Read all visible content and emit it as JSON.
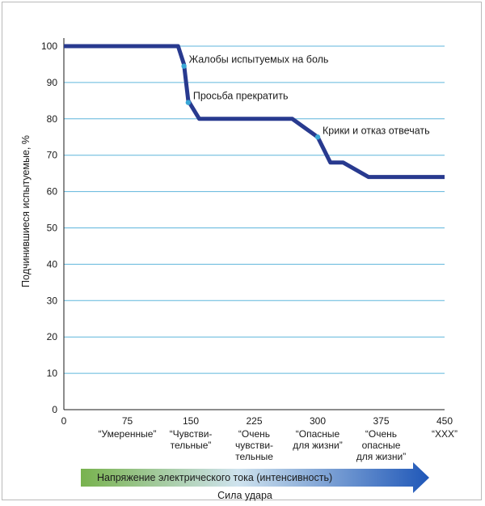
{
  "chart_data": {
    "type": "line",
    "ylabel": "Подчинившиеся испытуемые, %",
    "xlabel": "Сила удара",
    "arrow_label": "Напряжение электрического тока (интенсивность)",
    "xlim": [
      0,
      450
    ],
    "ylim": [
      0,
      100
    ],
    "x_ticks": [
      0,
      75,
      150,
      225,
      300,
      375,
      450
    ],
    "y_ticks": [
      0,
      10,
      20,
      30,
      40,
      50,
      60,
      70,
      80,
      90,
      100
    ],
    "grid": "horizontal",
    "category_labels": [
      {
        "x": 75,
        "lines": [
          "“Умеренные”"
        ]
      },
      {
        "x": 150,
        "lines": [
          "“Чувстви-",
          "тельные”"
        ]
      },
      {
        "x": 225,
        "lines": [
          "“Очень",
          "чувстви-",
          "тельные"
        ]
      },
      {
        "x": 300,
        "lines": [
          "“Опасные",
          "для жизни”"
        ]
      },
      {
        "x": 375,
        "lines": [
          "“Очень",
          "опасные",
          "для жизни”"
        ]
      },
      {
        "x": 450,
        "lines": [
          "“XXX”"
        ]
      }
    ],
    "series": [
      {
        "color": "#283a8f",
        "points": [
          [
            0,
            100
          ],
          [
            135,
            100
          ],
          [
            142,
            95
          ],
          [
            147,
            85
          ],
          [
            160,
            80
          ],
          [
            195,
            80
          ],
          [
            225,
            80
          ],
          [
            270,
            80
          ],
          [
            300,
            75
          ],
          [
            315,
            68
          ],
          [
            330,
            68
          ],
          [
            360,
            64
          ],
          [
            405,
            64
          ],
          [
            450,
            64
          ]
        ]
      }
    ],
    "annotations": [
      {
        "text": "Жалобы испытуемых на боль",
        "x": 142,
        "y": 94.5,
        "marker_color": "#3aa7d6"
      },
      {
        "text": "Просьба прекратить",
        "x": 147,
        "y": 84.5,
        "marker_color": "#3aa7d6"
      },
      {
        "text": "Крики и отказ отвечать",
        "x": 300,
        "y": 75,
        "marker_color": "#3aa7d6"
      }
    ],
    "colors": {
      "line": "#283a8f",
      "grid": "#5fb6dc",
      "axis": "#1a1a1a",
      "arrow_start": "#78b24e",
      "arrow_end": "#1f57b8"
    }
  }
}
